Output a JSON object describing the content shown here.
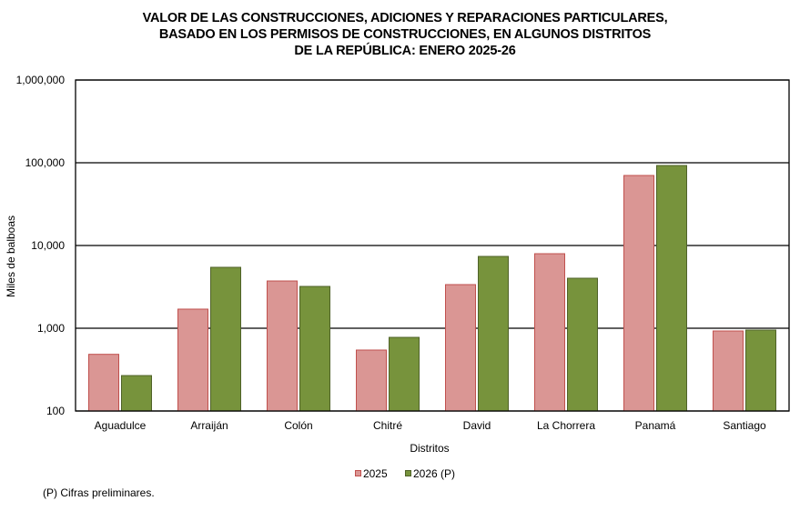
{
  "chart_data": {
    "type": "bar",
    "title": [
      "VALOR DE LAS CONSTRUCCIONES, ADICIONES Y REPARACIONES PARTICULARES,",
      "BASADO EN LOS PERMISOS DE CONSTRUCCIONES, EN ALGUNOS DISTRITOS",
      "DE LA REPÚBLICA: ENERO 2025-26"
    ],
    "xlabel": "Distritos",
    "ylabel": "Miles de balboas",
    "yscale": "log",
    "ylim": [
      100,
      1000000
    ],
    "yticks": [
      100,
      1000,
      10000,
      100000,
      1000000
    ],
    "ytick_labels": [
      "100",
      "1,000",
      "10,000",
      "100,000",
      "1,000,000"
    ],
    "grid": true,
    "legend_position": "bottom",
    "categories": [
      "Aguadulce",
      "Arraiján",
      "Colón",
      "Chitré",
      "David",
      "La Chorrera",
      "Panamá",
      "Santiago"
    ],
    "series": [
      {
        "name": "2025",
        "color": "#da9694",
        "border": "#c0504d",
        "values": [
          484,
          1702,
          3726,
          545,
          3368,
          7960,
          70200,
          927
        ]
      },
      {
        "name": "2026 (P)",
        "color": "#77933c",
        "border": "#4f6228",
        "values": [
          268,
          5450,
          3202,
          776,
          7380,
          4023,
          92700,
          951
        ]
      }
    ],
    "footnote": "(P) Cifras  preliminares."
  }
}
